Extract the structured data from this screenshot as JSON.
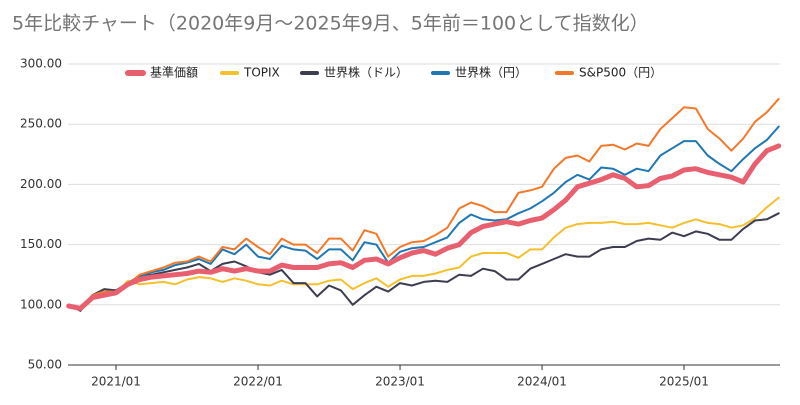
{
  "chart_data": {
    "type": "line",
    "title": "5年比較チャート（2020年9月〜2025年9月、5年前＝100として指数化）",
    "categories": [
      null,
      null,
      null,
      null,
      "2021/01",
      null,
      null,
      null,
      null,
      null,
      null,
      null,
      null,
      null,
      null,
      null,
      "2022/01",
      null,
      null,
      null,
      null,
      null,
      null,
      null,
      null,
      null,
      null,
      null,
      "2023/01",
      null,
      null,
      null,
      null,
      null,
      null,
      null,
      null,
      null,
      null,
      null,
      "2024/01",
      null,
      null,
      null,
      null,
      null,
      null,
      null,
      null,
      null,
      null,
      null,
      "2025/01",
      null,
      null,
      null,
      null,
      null,
      null,
      null,
      null
    ],
    "ylim": [
      50,
      300
    ],
    "yticks": [
      {
        "value": 50,
        "label": "50.00"
      },
      {
        "value": 100,
        "label": "100.00"
      },
      {
        "value": 150,
        "label": "150.00"
      },
      {
        "value": 200,
        "label": "200.00"
      },
      {
        "value": 250,
        "label": "250.00"
      },
      {
        "value": 300,
        "label": "300.00"
      }
    ],
    "grid": true,
    "legend": "top",
    "series": [
      {
        "name": "基準価額",
        "color": "#e8606f",
        "values": [
          99,
          97,
          106,
          108,
          110,
          117,
          121,
          123,
          124,
          125,
          126,
          128,
          127,
          130,
          128,
          130,
          128,
          128,
          133,
          131,
          131,
          131,
          134,
          135,
          131,
          137,
          138,
          134,
          139,
          143,
          145,
          142,
          147,
          150,
          160,
          165,
          167,
          169,
          167,
          170,
          172,
          179,
          187,
          198,
          201,
          204,
          208,
          205,
          198,
          199,
          205,
          207,
          212,
          213,
          210,
          208,
          206,
          202,
          217,
          228,
          232
        ]
      },
      {
        "name": "TOPIX",
        "color": "#f5c02c",
        "values": [
          100,
          96,
          107,
          109,
          110,
          120,
          117,
          118,
          119,
          117,
          121,
          123,
          122,
          119,
          122,
          120,
          117,
          116,
          120,
          117,
          117,
          117,
          120,
          121,
          113,
          118,
          122,
          115,
          121,
          124,
          124,
          126,
          129,
          131,
          140,
          143,
          143,
          143,
          139,
          146,
          146,
          156,
          164,
          167,
          168,
          168,
          169,
          167,
          167,
          168,
          166,
          164,
          168,
          171,
          168,
          167,
          164,
          166,
          172,
          181,
          189
        ]
      },
      {
        "name": "世界株（ドル）",
        "color": "#3d3d50",
        "values": [
          100,
          95,
          108,
          113,
          112,
          118,
          124,
          125,
          127,
          129,
          131,
          134,
          128,
          134,
          136,
          132,
          127,
          125,
          129,
          118,
          118,
          107,
          116,
          112,
          100,
          108,
          115,
          111,
          118,
          116,
          119,
          120,
          119,
          125,
          124,
          130,
          128,
          121,
          121,
          130,
          134,
          138,
          142,
          140,
          140,
          146,
          148,
          148,
          153,
          155,
          154,
          160,
          157,
          161,
          159,
          154,
          154,
          163,
          170,
          171,
          176
        ]
      },
      {
        "name": "世界株（円）",
        "color": "#1f77b4",
        "values": [
          100,
          97,
          108,
          111,
          111,
          116,
          123,
          127,
          129,
          133,
          135,
          138,
          134,
          146,
          142,
          150,
          140,
          138,
          149,
          146,
          145,
          138,
          146,
          146,
          137,
          152,
          150,
          135,
          144,
          147,
          148,
          152,
          156,
          168,
          175,
          171,
          170,
          171,
          176,
          180,
          186,
          193,
          202,
          208,
          204,
          214,
          213,
          208,
          213,
          211,
          224,
          230,
          236,
          236,
          224,
          217,
          211,
          221,
          230,
          237,
          248
        ]
      },
      {
        "name": "S&P500（円）",
        "color": "#f4782a",
        "values": [
          100,
          97,
          108,
          111,
          111,
          117,
          125,
          128,
          131,
          135,
          136,
          140,
          136,
          148,
          146,
          155,
          148,
          142,
          155,
          150,
          150,
          143,
          155,
          155,
          145,
          162,
          159,
          140,
          148,
          152,
          153,
          158,
          164,
          180,
          185,
          182,
          177,
          177,
          193,
          195,
          198,
          213,
          222,
          224,
          219,
          232,
          233,
          229,
          234,
          232,
          246,
          255,
          264,
          263,
          246,
          238,
          228,
          238,
          252,
          260,
          271
        ]
      }
    ]
  }
}
